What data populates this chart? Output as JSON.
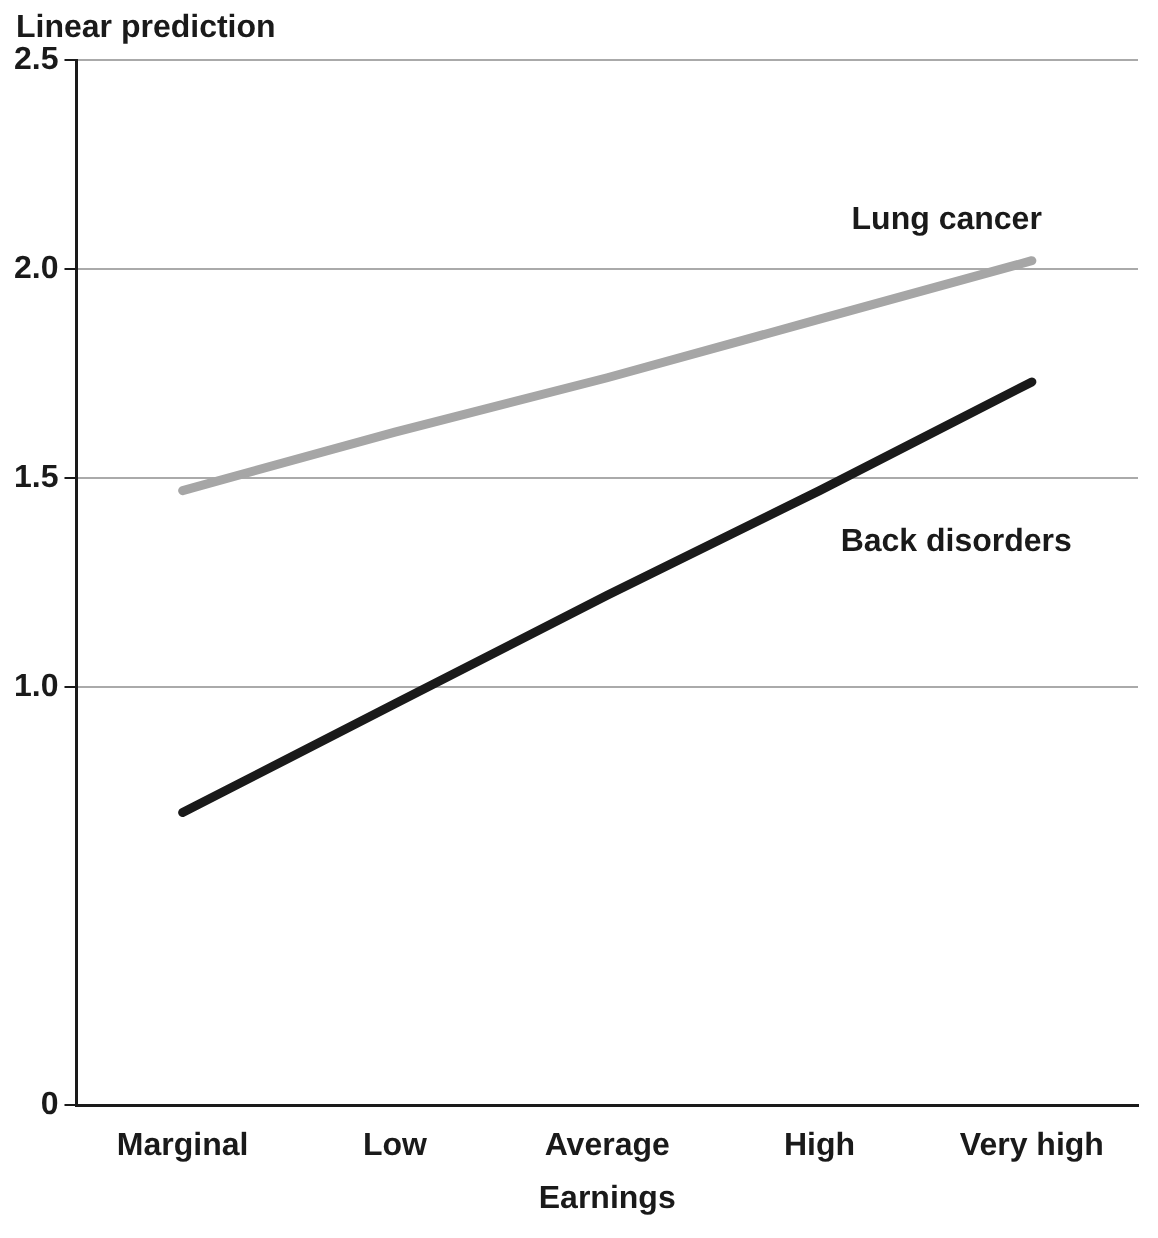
{
  "chart_data": {
    "type": "line",
    "xlabel": "Earnings",
    "ylabel": "Linear prediction",
    "categories": [
      "Marginal",
      "Low",
      "Average",
      "High",
      "Very high"
    ],
    "series": [
      {
        "name": "Lung cancer",
        "color": "#a6a6a6",
        "values": [
          1.47,
          1.61,
          1.74,
          1.88,
          2.02
        ]
      },
      {
        "name": "Back disorders",
        "color": "#1a1a1a",
        "values": [
          0.7,
          0.96,
          1.22,
          1.47,
          1.73
        ]
      }
    ],
    "ylim": [
      0,
      2.5
    ],
    "yticks": [
      0,
      {
        "value": 1.0,
        "label": "1.0"
      },
      {
        "value": 1.5,
        "label": "1.5"
      },
      {
        "value": 2.0,
        "label": "2.0"
      },
      {
        "value": 2.5,
        "label": "2.5"
      }
    ],
    "grid": "y",
    "legend": false,
    "marker": "none",
    "line_style": "solid"
  }
}
